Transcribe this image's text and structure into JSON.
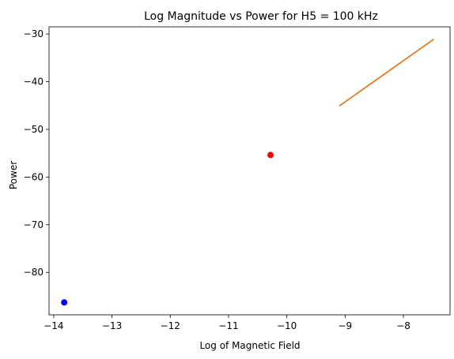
{
  "chart_data": {
    "type": "scatter",
    "title": "Log Magnitude vs Power for H5 = 100 kHz",
    "xlabel": "Log of Magnetic Field",
    "ylabel": "Power",
    "xlim": [
      -14.08,
      -7.2
    ],
    "ylim": [
      -88.9,
      -28.5
    ],
    "xticks": [
      -14,
      -13,
      -12,
      -11,
      -10,
      -9,
      -8
    ],
    "yticks": [
      -80,
      -70,
      -60,
      -50,
      -40,
      -30
    ],
    "grid": false,
    "points": [
      {
        "x": -13.82,
        "y": -86.3,
        "color": "#0000ff"
      },
      {
        "x": -10.28,
        "y": -55.4,
        "color": "#ff0000"
      }
    ],
    "lines": [
      {
        "x": [
          -9.1,
          -7.48
        ],
        "y": [
          -45.1,
          -31.1
        ],
        "color": "#e07d26"
      }
    ]
  }
}
